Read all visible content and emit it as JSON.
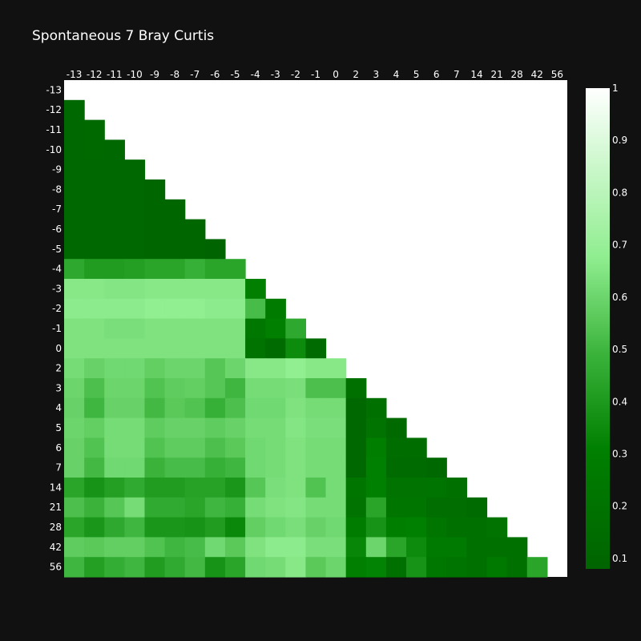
{
  "chart_data": {
    "type": "heatmap",
    "title": "Spontaneous 7 Bray Curtis",
    "x_labels": [
      "-13",
      "-12",
      "-11",
      "-10",
      "-9",
      "-8",
      "-7",
      "-6",
      "-5",
      "-4",
      "-3",
      "-2",
      "-1",
      "0",
      "2",
      "3",
      "4",
      "5",
      "6",
      "7",
      "14",
      "21",
      "28",
      "42",
      "56"
    ],
    "y_labels": [
      "-13",
      "-12",
      "-11",
      "-10",
      "-9",
      "-8",
      "-7",
      "-6",
      "-5",
      "-4",
      "-3",
      "-2",
      "-1",
      "0",
      "2",
      "3",
      "4",
      "5",
      "6",
      "7",
      "14",
      "21",
      "28",
      "42",
      "56"
    ],
    "zlim": [
      0.08,
      1
    ],
    "colorscale": [
      [
        0,
        "#006400"
      ],
      [
        0.25,
        "#008000"
      ],
      [
        0.45,
        "#3cb43c"
      ],
      [
        0.65,
        "#90ee90"
      ],
      [
        1,
        "#ffffff"
      ]
    ],
    "colorbar_ticks": [
      "0.1",
      "0.2",
      "0.3",
      "0.4",
      "0.5",
      "0.6",
      "0.7",
      "0.8",
      "0.9",
      "1"
    ],
    "values": [
      [],
      [
        0.11
      ],
      [
        0.11,
        0.12
      ],
      [
        0.11,
        0.12,
        0.11
      ],
      [
        0.11,
        0.11,
        0.11,
        0.11
      ],
      [
        0.11,
        0.11,
        0.11,
        0.11,
        0.1
      ],
      [
        0.11,
        0.11,
        0.11,
        0.11,
        0.1,
        0.1
      ],
      [
        0.11,
        0.11,
        0.11,
        0.11,
        0.1,
        0.1,
        0.1
      ],
      [
        0.11,
        0.11,
        0.11,
        0.11,
        0.1,
        0.1,
        0.1,
        0.09
      ],
      [
        0.45,
        0.41,
        0.41,
        0.42,
        0.44,
        0.44,
        0.48,
        0.44,
        0.44
      ],
      [
        0.66,
        0.66,
        0.65,
        0.65,
        0.66,
        0.66,
        0.66,
        0.66,
        0.66,
        0.3
      ],
      [
        0.67,
        0.67,
        0.67,
        0.67,
        0.68,
        0.68,
        0.68,
        0.67,
        0.67,
        0.52,
        0.27
      ],
      [
        0.64,
        0.64,
        0.63,
        0.63,
        0.64,
        0.64,
        0.64,
        0.64,
        0.64,
        0.24,
        0.3,
        0.45
      ],
      [
        0.64,
        0.64,
        0.64,
        0.64,
        0.64,
        0.64,
        0.64,
        0.64,
        0.64,
        0.2,
        0.14,
        0.35,
        0.14
      ],
      [
        0.62,
        0.59,
        0.61,
        0.61,
        0.58,
        0.6,
        0.6,
        0.55,
        0.6,
        0.66,
        0.66,
        0.68,
        0.66,
        0.66
      ],
      [
        0.6,
        0.53,
        0.6,
        0.6,
        0.54,
        0.57,
        0.58,
        0.55,
        0.5,
        0.62,
        0.62,
        0.63,
        0.53,
        0.53,
        0.18
      ],
      [
        0.59,
        0.5,
        0.59,
        0.59,
        0.51,
        0.56,
        0.54,
        0.48,
        0.53,
        0.61,
        0.61,
        0.64,
        0.62,
        0.62,
        0.11,
        0.18
      ],
      [
        0.6,
        0.58,
        0.62,
        0.62,
        0.57,
        0.59,
        0.59,
        0.57,
        0.59,
        0.62,
        0.62,
        0.65,
        0.63,
        0.63,
        0.11,
        0.2,
        0.12
      ],
      [
        0.59,
        0.54,
        0.62,
        0.62,
        0.54,
        0.57,
        0.57,
        0.53,
        0.56,
        0.61,
        0.62,
        0.64,
        0.62,
        0.62,
        0.11,
        0.29,
        0.15,
        0.15
      ],
      [
        0.59,
        0.51,
        0.61,
        0.61,
        0.49,
        0.52,
        0.52,
        0.48,
        0.5,
        0.61,
        0.62,
        0.64,
        0.62,
        0.62,
        0.11,
        0.31,
        0.14,
        0.14,
        0.11
      ],
      [
        0.44,
        0.38,
        0.42,
        0.46,
        0.41,
        0.41,
        0.43,
        0.43,
        0.39,
        0.55,
        0.63,
        0.64,
        0.54,
        0.62,
        0.22,
        0.31,
        0.2,
        0.2,
        0.21,
        0.18
      ],
      [
        0.53,
        0.49,
        0.55,
        0.62,
        0.46,
        0.46,
        0.44,
        0.5,
        0.48,
        0.62,
        0.64,
        0.65,
        0.62,
        0.62,
        0.2,
        0.44,
        0.23,
        0.22,
        0.16,
        0.16,
        0.14
      ],
      [
        0.44,
        0.39,
        0.45,
        0.5,
        0.39,
        0.39,
        0.38,
        0.41,
        0.34,
        0.58,
        0.61,
        0.63,
        0.59,
        0.61,
        0.28,
        0.38,
        0.29,
        0.31,
        0.23,
        0.19,
        0.19,
        0.2
      ],
      [
        0.57,
        0.56,
        0.58,
        0.58,
        0.54,
        0.5,
        0.52,
        0.61,
        0.56,
        0.64,
        0.67,
        0.67,
        0.63,
        0.63,
        0.33,
        0.6,
        0.44,
        0.35,
        0.26,
        0.26,
        0.19,
        0.19,
        0.18
      ],
      [
        0.5,
        0.42,
        0.47,
        0.5,
        0.41,
        0.46,
        0.51,
        0.38,
        0.44,
        0.61,
        0.62,
        0.66,
        0.56,
        0.6,
        0.3,
        0.32,
        0.18,
        0.38,
        0.24,
        0.21,
        0.19,
        0.25,
        0.19,
        0.44
      ]
    ]
  }
}
